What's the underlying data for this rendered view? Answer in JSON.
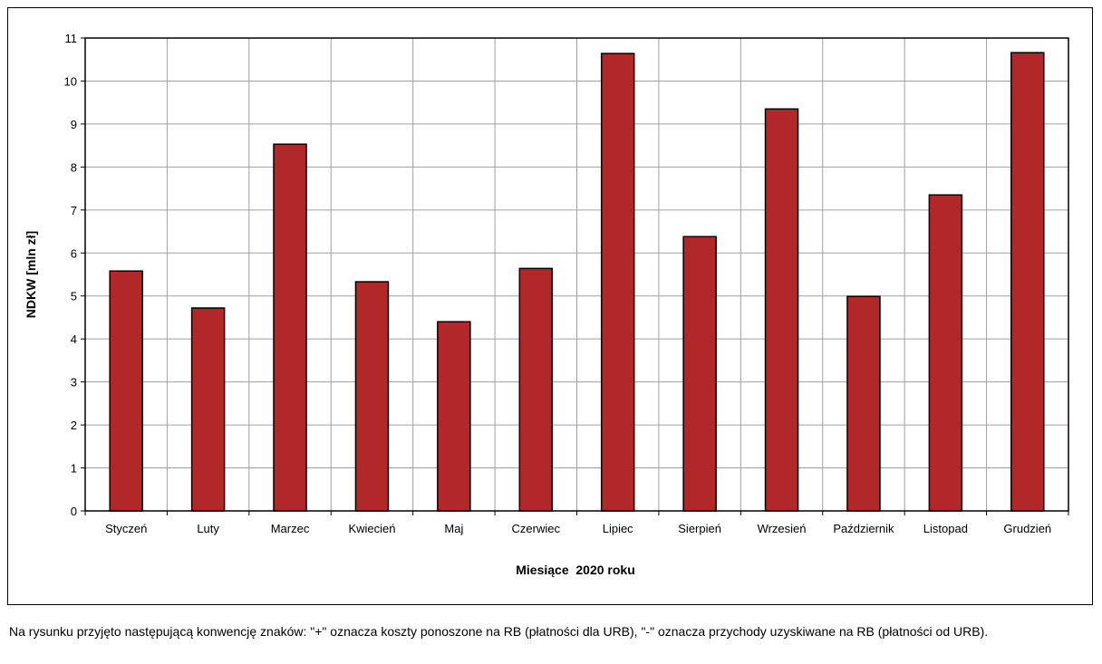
{
  "chart_data": {
    "type": "bar",
    "categories": [
      "Styczeń",
      "Luty",
      "Marzec",
      "Kwiecień",
      "Maj",
      "Czerwiec",
      "Lipiec",
      "Sierpień",
      "Wrzesień",
      "Październik",
      "Listopad",
      "Grudzień"
    ],
    "values": [
      5.58,
      4.72,
      8.53,
      5.33,
      4.4,
      5.64,
      10.64,
      6.38,
      9.35,
      4.99,
      7.35,
      10.66
    ],
    "xlabel": "Miesiące  2020 roku",
    "ylabel": "NDKW [mln zł]",
    "ylim": [
      0,
      11
    ],
    "yticks": [
      "0",
      "1",
      "2",
      "3",
      "4",
      "5",
      "6",
      "7",
      "8",
      "9",
      "10",
      "11"
    ],
    "grid": true,
    "colors": {
      "bar": "#b22828",
      "bar_edge": "#000000",
      "grid": "#a0a0a0",
      "axis": "#000000"
    }
  },
  "caption": "Na rysunku przyjęto następującą konwencję znaków: \"+\" oznacza koszty ponoszone na RB (płatności dla URB), \"-\" oznacza przychody uzyskiwane na RB (płatności od URB)."
}
